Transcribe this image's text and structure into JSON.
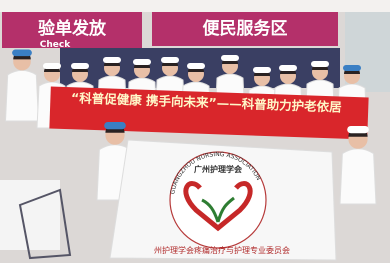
{
  "signs": [
    {
      "label": "验单发放",
      "sublabel": "Check"
    },
    {
      "label": "便民服务区"
    }
  ],
  "banner": {
    "text": "“科普促健康 携手向未来”——科普助力护老依居"
  },
  "flag": {
    "name": "广州护理学会",
    "english": "GUANGZHOU NURSING ASSOCIATION",
    "footer": "州护理学会疼痛治疗与护理专业委员会"
  }
}
